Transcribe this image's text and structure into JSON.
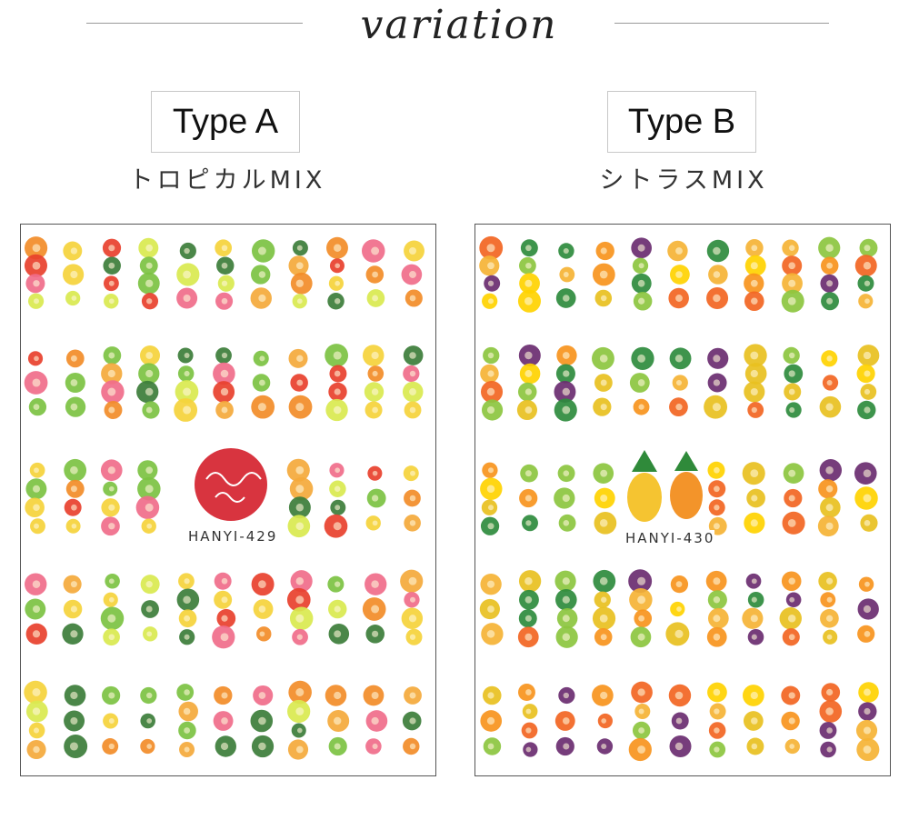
{
  "header": {
    "title": "variation"
  },
  "variants": [
    {
      "type_label": "Type A",
      "subtitle": "トロピカルMIX",
      "sheet_code": "HANYI-429",
      "palette": [
        "#f28c28",
        "#e8402c",
        "#f5d23b",
        "#7cc242",
        "#f06c8a",
        "#3c7d3a",
        "#f4a93b",
        "#d9e94f"
      ]
    },
    {
      "type_label": "Type B",
      "subtitle": "シトラスMIX",
      "sheet_code": "HANYI-430",
      "palette": [
        "#f7941d",
        "#f26522",
        "#ffd200",
        "#8cc63f",
        "#2e8b3d",
        "#f5b335",
        "#e8c020",
        "#6a2c70"
      ]
    }
  ]
}
